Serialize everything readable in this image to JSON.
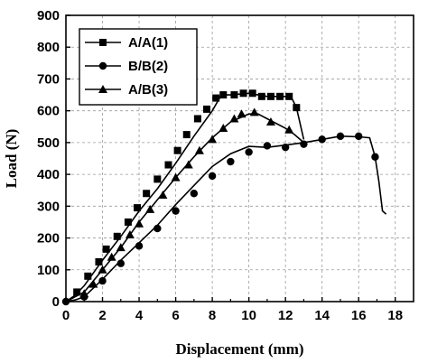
{
  "chart_data": {
    "type": "line",
    "title": "",
    "xlabel": "Displacement (mm)",
    "ylabel": "Load (N)",
    "xlim": [
      0,
      19
    ],
    "ylim": [
      0,
      900
    ],
    "xticks": [
      0,
      2,
      4,
      6,
      8,
      10,
      12,
      14,
      16,
      18
    ],
    "yticks": [
      0,
      100,
      200,
      300,
      400,
      500,
      600,
      700,
      800,
      900
    ],
    "grid": true,
    "legend_position": "top-left",
    "series": [
      {
        "name": "A/A(1)",
        "marker": "square",
        "line": [
          [
            0,
            0
          ],
          [
            0.5,
            20
          ],
          [
            1,
            50
          ],
          [
            2,
            130
          ],
          [
            3,
            205
          ],
          [
            4,
            285
          ],
          [
            5,
            355
          ],
          [
            6,
            435
          ],
          [
            7,
            520
          ],
          [
            8,
            600
          ],
          [
            8.5,
            650
          ],
          [
            9,
            650
          ],
          [
            10,
            655
          ],
          [
            11,
            645
          ],
          [
            12,
            645
          ],
          [
            12.3,
            645
          ],
          [
            12.6,
            610
          ],
          [
            13,
            510
          ]
        ],
        "markers": [
          [
            0.6,
            30
          ],
          [
            1.2,
            80
          ],
          [
            1.8,
            125
          ],
          [
            2.2,
            165
          ],
          [
            2.8,
            205
          ],
          [
            3.4,
            250
          ],
          [
            3.9,
            295
          ],
          [
            4.4,
            340
          ],
          [
            5,
            385
          ],
          [
            5.6,
            430
          ],
          [
            6.1,
            475
          ],
          [
            6.6,
            525
          ],
          [
            7.2,
            575
          ],
          [
            7.7,
            605
          ],
          [
            8.2,
            640
          ],
          [
            8.6,
            650
          ],
          [
            9.2,
            650
          ],
          [
            9.7,
            655
          ],
          [
            10.2,
            655
          ],
          [
            10.7,
            645
          ],
          [
            11.2,
            645
          ],
          [
            11.7,
            645
          ],
          [
            12.2,
            645
          ],
          [
            12.6,
            610
          ]
        ]
      },
      {
        "name": "B/B(2)",
        "marker": "circle",
        "line": [
          [
            0,
            0
          ],
          [
            0.5,
            5
          ],
          [
            1,
            15
          ],
          [
            2,
            70
          ],
          [
            3,
            130
          ],
          [
            4,
            185
          ],
          [
            5,
            240
          ],
          [
            6,
            305
          ],
          [
            7,
            365
          ],
          [
            8,
            425
          ],
          [
            9,
            465
          ],
          [
            10,
            488
          ],
          [
            11,
            485
          ],
          [
            12,
            492
          ],
          [
            13,
            500
          ],
          [
            14,
            510
          ],
          [
            15,
            520
          ],
          [
            16,
            518
          ],
          [
            16.6,
            515
          ],
          [
            16.9,
            455
          ],
          [
            17.1,
            380
          ],
          [
            17.3,
            285
          ],
          [
            17.5,
            275
          ]
        ],
        "markers": [
          [
            0,
            0
          ],
          [
            1,
            15
          ],
          [
            2,
            65
          ],
          [
            3,
            120
          ],
          [
            4,
            175
          ],
          [
            5,
            230
          ],
          [
            6,
            285
          ],
          [
            7,
            340
          ],
          [
            8,
            395
          ],
          [
            9,
            440
          ],
          [
            10,
            470
          ],
          [
            11,
            490
          ],
          [
            12,
            485
          ],
          [
            13,
            495
          ],
          [
            14,
            510
          ],
          [
            15,
            520
          ],
          [
            16,
            520
          ],
          [
            16.9,
            455
          ]
        ]
      },
      {
        "name": "A/B(3)",
        "marker": "triangle",
        "line": [
          [
            0,
            0
          ],
          [
            1,
            30
          ],
          [
            2,
            100
          ],
          [
            3,
            170
          ],
          [
            4,
            250
          ],
          [
            5,
            320
          ],
          [
            6,
            390
          ],
          [
            7,
            455
          ],
          [
            8,
            515
          ],
          [
            9,
            565
          ],
          [
            10,
            590
          ],
          [
            10.5,
            590
          ],
          [
            11,
            575
          ],
          [
            12,
            545
          ],
          [
            12.5,
            525
          ],
          [
            13,
            500
          ]
        ],
        "markers": [
          [
            1,
            25
          ],
          [
            1.5,
            55
          ],
          [
            2,
            100
          ],
          [
            2.5,
            140
          ],
          [
            3,
            170
          ],
          [
            3.5,
            210
          ],
          [
            4,
            245
          ],
          [
            4.6,
            290
          ],
          [
            5.3,
            335
          ],
          [
            6,
            390
          ],
          [
            6.7,
            430
          ],
          [
            7.3,
            475
          ],
          [
            8,
            510
          ],
          [
            8.6,
            545
          ],
          [
            9.2,
            575
          ],
          [
            9.6,
            590
          ],
          [
            10.3,
            595
          ],
          [
            11.2,
            565
          ],
          [
            12.2,
            540
          ]
        ]
      }
    ]
  }
}
